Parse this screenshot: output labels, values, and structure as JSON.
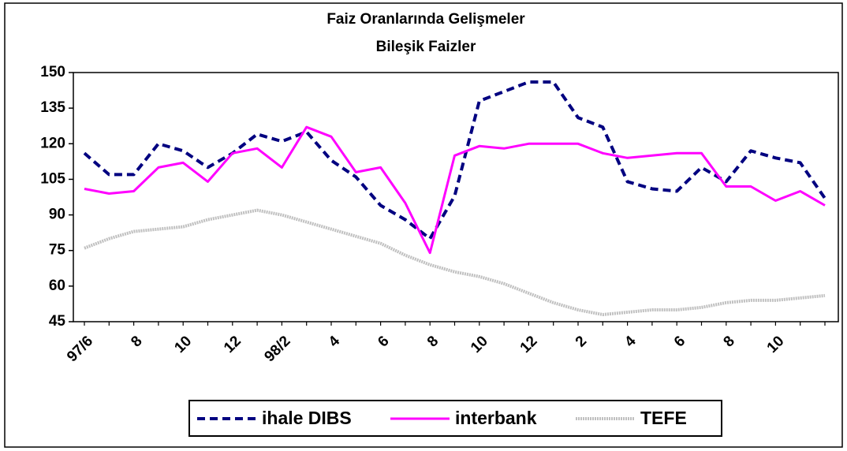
{
  "chart_data": {
    "type": "line",
    "title": "Faiz Oranlarında Gelişmeler",
    "subtitle": "Bileşik Faizler",
    "categories": [
      "97/6",
      null,
      "8",
      null,
      "10",
      null,
      "12",
      null,
      "98/2",
      null,
      "4",
      null,
      "6",
      null,
      "8",
      null,
      "10",
      null,
      "12",
      null,
      "2",
      null,
      "4",
      null,
      "6",
      null,
      "8",
      null,
      "10",
      null,
      null
    ],
    "series": [
      {
        "name": "ihale DIBS",
        "color": "#000080",
        "values": [
          116,
          107,
          107,
          120,
          117,
          110,
          116,
          124,
          121,
          125,
          113,
          106,
          94,
          88,
          80,
          98,
          138,
          142,
          146,
          146,
          131,
          127,
          104,
          101,
          100,
          110,
          104,
          117,
          114,
          112,
          97
        ]
      },
      {
        "name": "interbank",
        "color": "#ff00ff",
        "values": [
          101,
          99,
          100,
          110,
          112,
          104,
          116,
          118,
          110,
          127,
          123,
          108,
          110,
          95,
          74,
          115,
          119,
          118,
          120,
          120,
          120,
          116,
          114,
          115,
          116,
          116,
          102,
          102,
          96,
          100,
          94
        ]
      },
      {
        "name": "TEFE",
        "color": "#c0c0c0",
        "values": [
          76,
          80,
          83,
          84,
          85,
          88,
          90,
          92,
          90,
          87,
          84,
          81,
          78,
          73,
          69,
          66,
          64,
          61,
          57,
          53,
          50,
          48,
          49,
          50,
          50,
          51,
          53,
          54,
          54,
          55,
          56
        ]
      }
    ],
    "ylim": [
      45,
      150
    ],
    "yticks": [
      45,
      60,
      75,
      90,
      105,
      120,
      135,
      150
    ],
    "grid": false,
    "legend": "bottom"
  }
}
